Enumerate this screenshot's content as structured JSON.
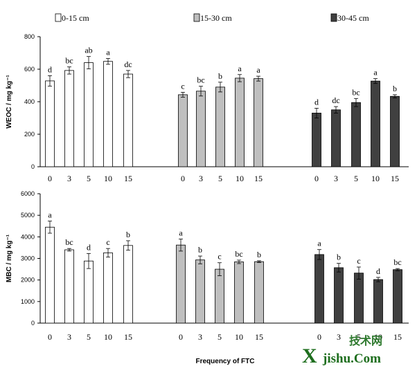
{
  "legend": [
    {
      "label": "0-15 cm",
      "color": "#ffffff"
    },
    {
      "label": "15-30 cm",
      "color": "#bfbfbf"
    },
    {
      "label": "30-45 cm",
      "color": "#404040"
    }
  ],
  "xaxis_title": "Frequency of FTC",
  "watermark": {
    "line1": "技术网",
    "big": "X",
    "rest": "jishu.Com"
  },
  "chart_data": [
    {
      "type": "bar",
      "ylabel": "WEOC / mg kg⁻¹",
      "ylim": [
        0,
        800
      ],
      "yticks": [
        0,
        200,
        400,
        600,
        800
      ],
      "categories": [
        "0",
        "3",
        "5",
        "10",
        "15"
      ],
      "series": [
        {
          "name": "0-15 cm",
          "values": [
            528,
            592,
            640,
            648,
            570
          ],
          "errors": [
            32,
            22,
            38,
            18,
            22
          ],
          "letters": [
            "d",
            "bc",
            "ab",
            "a",
            "dc"
          ]
        },
        {
          "name": "15-30 cm",
          "values": [
            443,
            465,
            490,
            545,
            542
          ],
          "errors": [
            15,
            30,
            30,
            22,
            15
          ],
          "letters": [
            "c",
            "bc",
            "b",
            "a",
            "a"
          ]
        },
        {
          "name": "30-45 cm",
          "values": [
            330,
            350,
            395,
            527,
            433
          ],
          "errors": [
            30,
            20,
            25,
            15,
            10
          ],
          "letters": [
            "d",
            "dc",
            "bc",
            "a",
            "b"
          ]
        }
      ]
    },
    {
      "type": "bar",
      "ylabel": "MBC / mg kg⁻¹",
      "ylim": [
        0,
        6000
      ],
      "yticks": [
        0,
        1000,
        2000,
        3000,
        4000,
        5000,
        6000
      ],
      "categories": [
        "0",
        "3",
        "5",
        "10",
        "15"
      ],
      "series": [
        {
          "name": "0-15 cm",
          "values": [
            4450,
            3400,
            2880,
            3260,
            3600
          ],
          "errors": [
            280,
            60,
            350,
            200,
            220
          ],
          "letters": [
            "a",
            "bc",
            "d",
            "c",
            "b"
          ]
        },
        {
          "name": "15-30 cm",
          "values": [
            3620,
            2930,
            2500,
            2840,
            2850
          ],
          "errors": [
            280,
            180,
            300,
            80,
            40
          ],
          "letters": [
            "a",
            "b",
            "c",
            "bc",
            "b"
          ]
        },
        {
          "name": "30-45 cm",
          "values": [
            3180,
            2570,
            2320,
            2020,
            2480
          ],
          "errors": [
            230,
            200,
            280,
            100,
            50
          ],
          "letters": [
            "a",
            "b",
            "c",
            "d",
            "bc"
          ]
        }
      ]
    }
  ]
}
